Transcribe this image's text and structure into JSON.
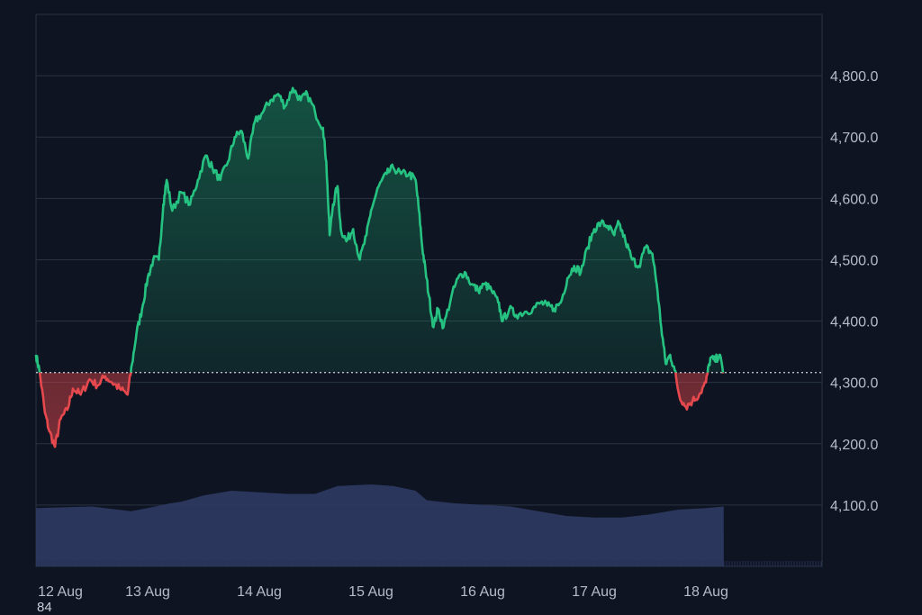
{
  "chart_data": {
    "type": "area",
    "x_ticks": [
      "12 Aug",
      "13 Aug",
      "14 Aug",
      "15 Aug",
      "16 Aug",
      "17 Aug",
      "18 Aug"
    ],
    "y_ticks": [
      "4,100.0",
      "4,200.0",
      "4,300.0",
      "4,400.0",
      "4,500.0",
      "4,600.0",
      "4,700.0",
      "4,800.0"
    ],
    "ylim": [
      4000,
      4900
    ],
    "baseline": 4316,
    "grid": true,
    "colors": {
      "up": "#26c281",
      "down": "#e5484d",
      "volume": "#2d3a63",
      "grid": "#2a3344"
    },
    "series": [
      {
        "values": [
          [
            0.0,
            4345
          ],
          [
            0.03,
            4320
          ],
          [
            0.08,
            4250
          ],
          [
            0.12,
            4220
          ],
          [
            0.17,
            4195
          ],
          [
            0.22,
            4240
          ],
          [
            0.28,
            4255
          ],
          [
            0.33,
            4290
          ],
          [
            0.4,
            4280
          ],
          [
            0.48,
            4305
          ],
          [
            0.55,
            4295
          ],
          [
            0.62,
            4310
          ],
          [
            0.68,
            4300
          ],
          [
            0.75,
            4290
          ],
          [
            0.82,
            4280
          ],
          [
            0.86,
            4330
          ],
          [
            0.9,
            4380
          ],
          [
            0.95,
            4420
          ],
          [
            1.0,
            4470
          ],
          [
            1.05,
            4500
          ],
          [
            1.1,
            4500
          ],
          [
            1.14,
            4590
          ],
          [
            1.17,
            4630
          ],
          [
            1.22,
            4580
          ],
          [
            1.3,
            4610
          ],
          [
            1.38,
            4590
          ],
          [
            1.45,
            4630
          ],
          [
            1.52,
            4670
          ],
          [
            1.58,
            4650
          ],
          [
            1.65,
            4630
          ],
          [
            1.72,
            4660
          ],
          [
            1.78,
            4700
          ],
          [
            1.84,
            4710
          ],
          [
            1.9,
            4665
          ],
          [
            1.96,
            4725
          ],
          [
            2.03,
            4740
          ],
          [
            2.1,
            4760
          ],
          [
            2.17,
            4770
          ],
          [
            2.23,
            4750
          ],
          [
            2.3,
            4780
          ],
          [
            2.37,
            4760
          ],
          [
            2.43,
            4770
          ],
          [
            2.5,
            4740
          ],
          [
            2.57,
            4715
          ],
          [
            2.6,
            4660
          ],
          [
            2.63,
            4540
          ],
          [
            2.66,
            4590
          ],
          [
            2.7,
            4620
          ],
          [
            2.73,
            4550
          ],
          [
            2.78,
            4530
          ],
          [
            2.84,
            4550
          ],
          [
            2.9,
            4500
          ],
          [
            2.96,
            4540
          ],
          [
            3.0,
            4580
          ],
          [
            3.07,
            4620
          ],
          [
            3.14,
            4640
          ],
          [
            3.2,
            4650
          ],
          [
            3.27,
            4640
          ],
          [
            3.34,
            4640
          ],
          [
            3.4,
            4630
          ],
          [
            3.43,
            4580
          ],
          [
            3.46,
            4520
          ],
          [
            3.49,
            4480
          ],
          [
            3.52,
            4440
          ],
          [
            3.56,
            4390
          ],
          [
            3.6,
            4420
          ],
          [
            3.65,
            4390
          ],
          [
            3.72,
            4440
          ],
          [
            3.78,
            4470
          ],
          [
            3.84,
            4480
          ],
          [
            3.9,
            4460
          ],
          [
            3.96,
            4450
          ],
          [
            4.02,
            4460
          ],
          [
            4.08,
            4450
          ],
          [
            4.14,
            4430
          ],
          [
            4.18,
            4400
          ],
          [
            4.24,
            4420
          ],
          [
            4.3,
            4410
          ],
          [
            4.38,
            4415
          ],
          [
            4.45,
            4420
          ],
          [
            4.52,
            4430
          ],
          [
            4.58,
            4425
          ],
          [
            4.64,
            4420
          ],
          [
            4.7,
            4430
          ],
          [
            4.76,
            4470
          ],
          [
            4.82,
            4490
          ],
          [
            4.88,
            4480
          ],
          [
            4.94,
            4520
          ],
          [
            5.0,
            4550
          ],
          [
            5.06,
            4560
          ],
          [
            5.12,
            4555
          ],
          [
            5.18,
            4540
          ],
          [
            5.22,
            4560
          ],
          [
            5.28,
            4530
          ],
          [
            5.34,
            4500
          ],
          [
            5.4,
            4490
          ],
          [
            5.46,
            4520
          ],
          [
            5.52,
            4510
          ],
          [
            5.56,
            4460
          ],
          [
            5.6,
            4390
          ],
          [
            5.64,
            4330
          ],
          [
            5.68,
            4345
          ],
          [
            5.72,
            4320
          ],
          [
            5.76,
            4280
          ],
          [
            5.82,
            4260
          ],
          [
            5.88,
            4270
          ],
          [
            5.94,
            4280
          ],
          [
            6.0,
            4300
          ],
          [
            6.04,
            4340
          ],
          [
            6.08,
            4335
          ],
          [
            6.12,
            4345
          ],
          [
            6.16,
            4315
          ]
        ]
      }
    ],
    "volume": [
      [
        0.0,
        0.37
      ],
      [
        0.5,
        0.38
      ],
      [
        0.85,
        0.35
      ],
      [
        1.0,
        0.37
      ],
      [
        1.2,
        0.4
      ],
      [
        1.3,
        0.41
      ],
      [
        1.5,
        0.45
      ],
      [
        1.75,
        0.48
      ],
      [
        2.0,
        0.47
      ],
      [
        2.25,
        0.46
      ],
      [
        2.5,
        0.46
      ],
      [
        2.7,
        0.51
      ],
      [
        3.0,
        0.52
      ],
      [
        3.2,
        0.51
      ],
      [
        3.4,
        0.48
      ],
      [
        3.5,
        0.42
      ],
      [
        3.75,
        0.4
      ],
      [
        4.0,
        0.39
      ],
      [
        4.25,
        0.38
      ],
      [
        4.5,
        0.35
      ],
      [
        4.75,
        0.32
      ],
      [
        5.0,
        0.31
      ],
      [
        5.25,
        0.31
      ],
      [
        5.5,
        0.33
      ],
      [
        5.75,
        0.36
      ],
      [
        6.0,
        0.37
      ],
      [
        6.16,
        0.38
      ]
    ]
  },
  "stray_label": "84"
}
